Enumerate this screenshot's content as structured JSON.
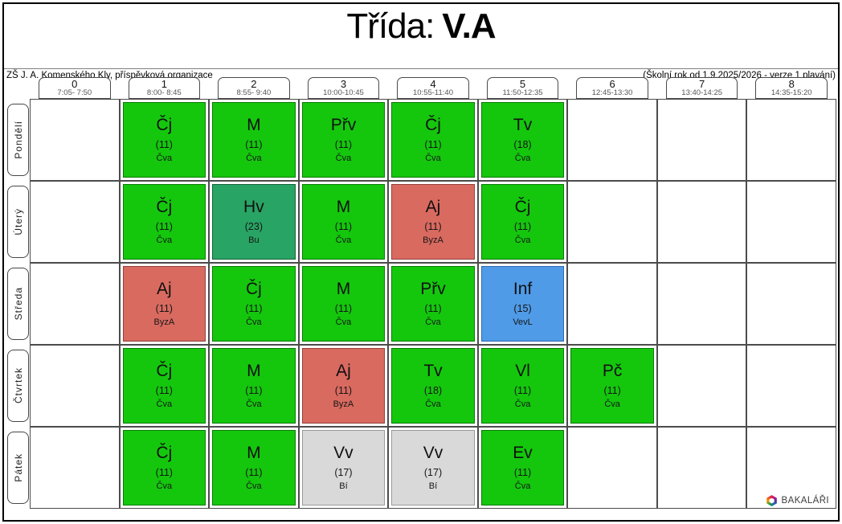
{
  "title": {
    "prefix": "Třída:",
    "class_name": "V.A"
  },
  "meta": {
    "school": "ZŠ J. A. Komenského Kly, příspěvková organizace",
    "schedule_info": "(Školní rok od 1.9.2025/2026 - verze 1 plavání)"
  },
  "periods": [
    {
      "num": "0",
      "time": "7:05- 7:50"
    },
    {
      "num": "1",
      "time": "8:00- 8:45"
    },
    {
      "num": "2",
      "time": "8:55- 9:40"
    },
    {
      "num": "3",
      "time": "10:00-10:45"
    },
    {
      "num": "4",
      "time": "10:55-11:40"
    },
    {
      "num": "5",
      "time": "11:50-12:35"
    },
    {
      "num": "6",
      "time": "12:45-13:30"
    },
    {
      "num": "7",
      "time": "13:40-14:25"
    },
    {
      "num": "8",
      "time": "14:35-15:20"
    }
  ],
  "colors": {
    "green": {
      "fill": "#14c70d",
      "border": "#0c7a06"
    },
    "seagreen": {
      "fill": "#28a464",
      "border": "#17623b"
    },
    "red": {
      "fill": "#d96a60",
      "border": "#93413a"
    },
    "blue": {
      "fill": "#4f9be7",
      "border": "#2e6aad"
    },
    "gray": {
      "fill": "#d9d9d9",
      "border": "#9a9a9a"
    }
  },
  "days": [
    {
      "label": "Pondělí",
      "lessons": [
        null,
        {
          "subject": "Čj",
          "room": "(11)",
          "teacher": "Čva",
          "color": "green"
        },
        {
          "subject": "M",
          "room": "(11)",
          "teacher": "Čva",
          "color": "green"
        },
        {
          "subject": "Přv",
          "room": "(11)",
          "teacher": "Čva",
          "color": "green"
        },
        {
          "subject": "Čj",
          "room": "(11)",
          "teacher": "Čva",
          "color": "green"
        },
        {
          "subject": "Tv",
          "room": "(18)",
          "teacher": "Čva",
          "color": "green"
        },
        null,
        null,
        null
      ]
    },
    {
      "label": "Úterý",
      "lessons": [
        null,
        {
          "subject": "Čj",
          "room": "(11)",
          "teacher": "Čva",
          "color": "green"
        },
        {
          "subject": "Hv",
          "room": "(23)",
          "teacher": "Bu",
          "color": "seagreen"
        },
        {
          "subject": "M",
          "room": "(11)",
          "teacher": "Čva",
          "color": "green"
        },
        {
          "subject": "Aj",
          "room": "(11)",
          "teacher": "ByzA",
          "color": "red"
        },
        {
          "subject": "Čj",
          "room": "(11)",
          "teacher": "Čva",
          "color": "green"
        },
        null,
        null,
        null
      ]
    },
    {
      "label": "Středa",
      "lessons": [
        null,
        {
          "subject": "Aj",
          "room": "(11)",
          "teacher": "ByzA",
          "color": "red"
        },
        {
          "subject": "Čj",
          "room": "(11)",
          "teacher": "Čva",
          "color": "green"
        },
        {
          "subject": "M",
          "room": "(11)",
          "teacher": "Čva",
          "color": "green"
        },
        {
          "subject": "Přv",
          "room": "(11)",
          "teacher": "Čva",
          "color": "green"
        },
        {
          "subject": "Inf",
          "room": "(15)",
          "teacher": "VevL",
          "color": "blue"
        },
        null,
        null,
        null
      ]
    },
    {
      "label": "Čtvrtek",
      "lessons": [
        null,
        {
          "subject": "Čj",
          "room": "(11)",
          "teacher": "Čva",
          "color": "green"
        },
        {
          "subject": "M",
          "room": "(11)",
          "teacher": "Čva",
          "color": "green"
        },
        {
          "subject": "Aj",
          "room": "(11)",
          "teacher": "ByzA",
          "color": "red"
        },
        {
          "subject": "Tv",
          "room": "(18)",
          "teacher": "Čva",
          "color": "green"
        },
        {
          "subject": "Vl",
          "room": "(11)",
          "teacher": "Čva",
          "color": "green"
        },
        {
          "subject": "Pč",
          "room": "(11)",
          "teacher": "Čva",
          "color": "green"
        },
        null,
        null
      ]
    },
    {
      "label": "Pátek",
      "lessons": [
        null,
        {
          "subject": "Čj",
          "room": "(11)",
          "teacher": "Čva",
          "color": "green"
        },
        {
          "subject": "M",
          "room": "(11)",
          "teacher": "Čva",
          "color": "green"
        },
        {
          "subject": "Vv",
          "room": "(17)",
          "teacher": "Bí",
          "color": "gray"
        },
        {
          "subject": "Vv",
          "room": "(17)",
          "teacher": "Bí",
          "color": "gray"
        },
        {
          "subject": "Ev",
          "room": "(11)",
          "teacher": "Čva",
          "color": "green"
        },
        null,
        null,
        null
      ]
    }
  ],
  "branding": {
    "logo_text": "BAKALÁŘI"
  }
}
